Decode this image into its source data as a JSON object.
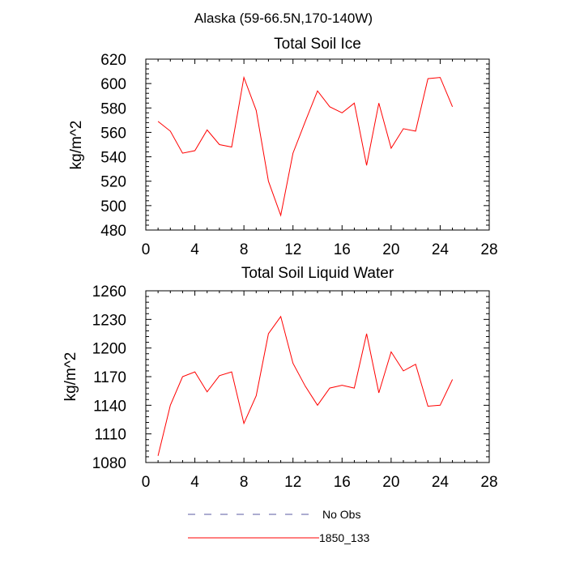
{
  "title": "Alaska (59-66.5N,170-140W)",
  "chart_data": [
    {
      "type": "line",
      "title": "Total Soil Ice",
      "xlabel": "",
      "ylabel": "kg/m^2",
      "xlim": [
        0,
        28
      ],
      "ylim": [
        480,
        620
      ],
      "xticks": [
        0,
        4,
        8,
        12,
        16,
        20,
        24,
        28
      ],
      "yticks": [
        480,
        500,
        520,
        540,
        560,
        580,
        600,
        620
      ],
      "grid": false,
      "series": [
        {
          "name": "1850_133",
          "color": "#ff0000",
          "x": [
            1,
            2,
            3,
            4,
            5,
            6,
            7,
            8,
            9,
            10,
            11,
            12,
            13,
            14,
            15,
            16,
            17,
            18,
            19,
            20,
            21,
            22,
            23,
            24,
            25
          ],
          "y": [
            569,
            561,
            543,
            545,
            562,
            550,
            548,
            605,
            578,
            520,
            492,
            543,
            569,
            594,
            581,
            576,
            584,
            533,
            584,
            547,
            563,
            561,
            604,
            605,
            581
          ]
        }
      ]
    },
    {
      "type": "line",
      "title": "Total Soil Liquid Water",
      "xlabel": "",
      "ylabel": "kg/m^2",
      "xlim": [
        0,
        28
      ],
      "ylim": [
        1080,
        1260
      ],
      "xticks": [
        0,
        4,
        8,
        12,
        16,
        20,
        24,
        28
      ],
      "yticks": [
        1080,
        1110,
        1140,
        1170,
        1200,
        1230,
        1260
      ],
      "grid": false,
      "series": [
        {
          "name": "1850_133",
          "color": "#ff0000",
          "x": [
            1,
            2,
            3,
            4,
            5,
            6,
            7,
            8,
            9,
            10,
            11,
            12,
            13,
            14,
            15,
            16,
            17,
            18,
            19,
            20,
            21,
            22,
            23,
            24,
            25
          ],
          "y": [
            1087,
            1140,
            1170,
            1175,
            1154,
            1171,
            1175,
            1121,
            1150,
            1215,
            1233,
            1184,
            1160,
            1140,
            1158,
            1161,
            1158,
            1215,
            1153,
            1196,
            1176,
            1183,
            1139,
            1140,
            1167
          ]
        }
      ]
    }
  ],
  "legend": {
    "placement": "bottom",
    "entries": [
      {
        "label": "No Obs",
        "color": "#5a5aa0",
        "dash": "dashed"
      },
      {
        "label": "1850_133",
        "color": "#ff0000",
        "dash": "solid"
      }
    ]
  }
}
